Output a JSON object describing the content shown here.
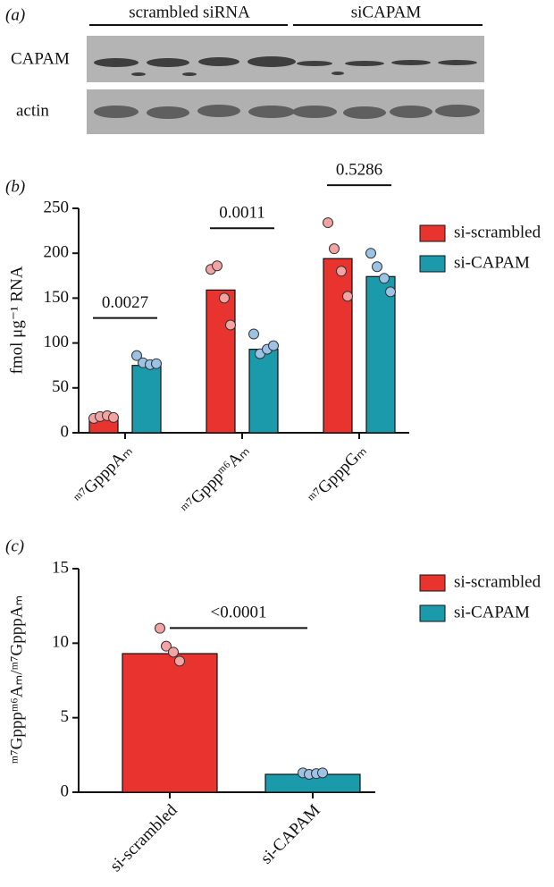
{
  "blot": {
    "label": "(a)",
    "groups": [
      "scrambled siRNA",
      "siCAPAM"
    ],
    "rows": [
      "CAPAM",
      "actin"
    ]
  },
  "chart_data": [
    {
      "type": "bar",
      "panel_label": "(b)",
      "ylabel": "fmol μg⁻¹ RNA",
      "categories": [
        "ᵐ⁷GpppAₘ",
        "ᵐ⁷Gpppᵐ⁶Aₘ",
        "ᵐ⁷GpppGₘ"
      ],
      "series": [
        {
          "name": "si-scrambled",
          "color": "#e8332f",
          "point_color": "#f4a3a3",
          "values": [
            17,
            159,
            194
          ],
          "points": [
            [
              16,
              18,
              19,
              17
            ],
            [
              182,
              186,
              150,
              120
            ],
            [
              234,
              205,
              180,
              152
            ]
          ]
        },
        {
          "name": "si-CAPAM",
          "color": "#1a9aaa",
          "point_color": "#9cc3e6",
          "values": [
            75,
            93,
            174
          ],
          "points": [
            [
              86,
              78,
              76,
              77
            ],
            [
              110,
              88,
              93,
              97
            ],
            [
              200,
              185,
              172,
              157
            ]
          ]
        }
      ],
      "p_values": [
        "0.0027",
        "0.0011",
        "0.5286"
      ],
      "ylim": [
        0,
        250
      ],
      "yticks": [
        0,
        50,
        100,
        150,
        200,
        250
      ],
      "legend": "right"
    },
    {
      "type": "bar",
      "panel_label": "(c)",
      "ylabel": "ᵐ⁷Gpppᵐ⁶Aₘ/ᵐ⁷GpppAₘ",
      "categories": [
        "si-scrambled",
        "si-CAPAM"
      ],
      "values": [
        9.3,
        1.2
      ],
      "colors": [
        "#e8332f",
        "#1a9aaa"
      ],
      "point_colors": [
        "#f4a3a3",
        "#9cc3e6"
      ],
      "points": [
        [
          11,
          9.8,
          9.4,
          8.8
        ],
        [
          1.3,
          1.2,
          1.25,
          1.3
        ]
      ],
      "p_values": [
        "<0.0001"
      ],
      "ylim": [
        0,
        15
      ],
      "yticks": [
        0,
        5,
        10,
        15
      ],
      "legend": "right"
    }
  ]
}
